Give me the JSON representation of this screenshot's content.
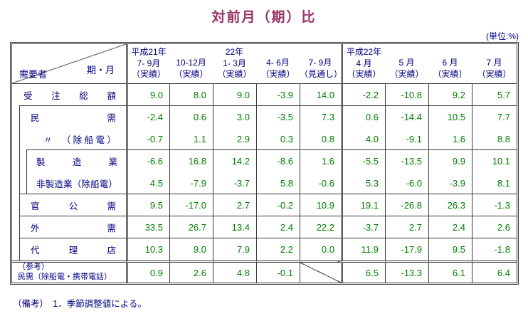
{
  "title": "対前月（期）比",
  "unit_label": "(単位:%)",
  "note": "（備考）　1．季節調整値による。",
  "colors": {
    "title": "#993366",
    "label_text": "#000080",
    "value_text": "#008000",
    "border": "#3a3a3a"
  },
  "table": {
    "corner": {
      "row_axis": "需要者",
      "col_axis": "期・月"
    },
    "columns": [
      {
        "year": "平成21年",
        "period": "7- 9月",
        "status": "（実績）"
      },
      {
        "year": "",
        "period": "10-12月",
        "status": "（実績）"
      },
      {
        "year": "22年",
        "period": "1- 3月",
        "status": "（実績）"
      },
      {
        "year": "",
        "period": "4- 6月",
        "status": "（実績）"
      },
      {
        "year": "",
        "period": "7- 9月",
        "status": "（見通し）"
      },
      {
        "year": "平成22年",
        "period": "4 月",
        "status": "（実績）"
      },
      {
        "year": "",
        "period": "5 月",
        "status": "（実績）"
      },
      {
        "year": "",
        "period": "6 月",
        "status": "（実績）"
      },
      {
        "year": "",
        "period": "7 月",
        "status": "（実績）"
      }
    ],
    "rows": [
      {
        "label": "受　注　総　額",
        "indent": 0,
        "values": [
          "9.0",
          "8.0",
          "9.0",
          "-3.9",
          "14.0",
          "-2.2",
          "-10.8",
          "9.2",
          "5.7"
        ]
      },
      {
        "label": "民　　　　需",
        "indent": 1,
        "values": [
          "-2.4",
          "0.6",
          "3.0",
          "-3.5",
          "7.3",
          "0.6",
          "-14.4",
          "10.5",
          "7.7"
        ]
      },
      {
        "label": "〃　（除船電）",
        "indent": 1,
        "values": [
          "-0.7",
          "1.1",
          "2.9",
          "0.3",
          "0.8",
          "4.0",
          "-9.1",
          "1.6",
          "8.8"
        ]
      },
      {
        "label": "製　造　業",
        "indent": 2,
        "values": [
          "-6.6",
          "16.8",
          "14.2",
          "-8.6",
          "1.6",
          "-5.5",
          "-13.5",
          "9.9",
          "10.1"
        ]
      },
      {
        "label": "非製造業（除船電）",
        "indent": 2,
        "values": [
          "4.5",
          "-7.9",
          "-3.7",
          "5.8",
          "-0.6",
          "5.3",
          "-6.0",
          "-3.9",
          "8.1"
        ]
      },
      {
        "label": "官　公　需",
        "indent": 1,
        "values": [
          "9.5",
          "-17.0",
          "2.7",
          "-0.2",
          "10.9",
          "19.1",
          "-26.8",
          "26.3",
          "-1.3"
        ]
      },
      {
        "label": "外　　　需",
        "indent": 1,
        "values": [
          "33.5",
          "26.7",
          "13.4",
          "2.4",
          "22.2",
          "-3.7",
          "2.7",
          "2.4",
          "2.6"
        ]
      },
      {
        "label": "代　理　店",
        "indent": 1,
        "values": [
          "10.3",
          "9.0",
          "7.9",
          "2.2",
          "0.0",
          "11.9",
          "-17.9",
          "9.5",
          "-1.8"
        ]
      }
    ],
    "reference_row": {
      "label_line1": "（参考）",
      "label_line2": "民需（除船電・携帯電話）",
      "values": [
        "0.9",
        "2.6",
        "4.8",
        "-0.1",
        null,
        "6.5",
        "-13.3",
        "6.1",
        "6.4"
      ]
    }
  }
}
